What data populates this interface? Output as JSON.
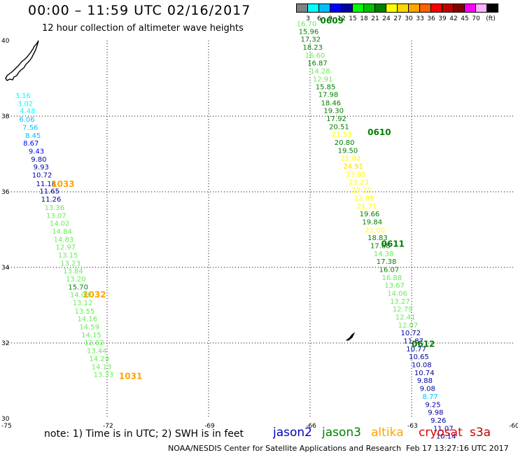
{
  "header": {
    "title": "00:00 – 11:59 UTC 02/16/2017",
    "subtitle": "12 hour collection of altimeter wave heights"
  },
  "legend": {
    "colors": [
      "#808080",
      "#00ffff",
      "#00bfff",
      "#0000ff",
      "#0000a0",
      "#00ff00",
      "#00c000",
      "#008000",
      "#ffff00",
      "#ffd700",
      "#ffa500",
      "#ff6000",
      "#ff0000",
      "#c00000",
      "#800000",
      "#ff00ff",
      "#ffb0ff",
      "#000000"
    ],
    "labels": [
      "3",
      "6",
      "9",
      "12",
      "15",
      "18",
      "21",
      "24",
      "27",
      "30",
      "33",
      "36",
      "39",
      "42",
      "45",
      "70",
      "(ft)"
    ]
  },
  "axes": {
    "x_ticks": [
      "-75",
      "-72",
      "-69",
      "-66",
      "-63",
      "-60"
    ],
    "y_ticks": [
      "30",
      "32",
      "34",
      "36",
      "38",
      "40"
    ]
  },
  "tracks": [
    {
      "pass": "1033",
      "pass_color": "#ffa500",
      "readings": [
        {
          "v": "3.16",
          "lon": -74.72,
          "lat": 38.48,
          "c": "#00ffff"
        },
        {
          "v": "3.02",
          "lon": -74.65,
          "lat": 38.27,
          "c": "#00ffff"
        },
        {
          "v": "4.48",
          "lon": -74.58,
          "lat": 38.07,
          "c": "#00ffff"
        },
        {
          "v": "6.06",
          "lon": -74.6,
          "lat": 37.85,
          "c": "#00bfff"
        },
        {
          "v": "7.56",
          "lon": -74.5,
          "lat": 37.64,
          "c": "#00bfff"
        },
        {
          "v": "8.45",
          "lon": -74.42,
          "lat": 37.43,
          "c": "#00bfff"
        },
        {
          "v": "8.67",
          "lon": -74.48,
          "lat": 37.22,
          "c": "#0000ff"
        },
        {
          "v": "9.43",
          "lon": -74.32,
          "lat": 37.01,
          "c": "#0000ff"
        },
        {
          "v": "9.80",
          "lon": -74.25,
          "lat": 36.8,
          "c": "#0000a0"
        },
        {
          "v": "9.93",
          "lon": -74.18,
          "lat": 36.59,
          "c": "#0000a0"
        },
        {
          "v": "10.72",
          "lon": -74.22,
          "lat": 36.38,
          "c": "#0000a0"
        },
        {
          "v": "11.18",
          "lon": -74.1,
          "lat": 36.15,
          "c": "#0000a0"
        },
        {
          "v": "11.65",
          "lon": -74.0,
          "lat": 35.95,
          "c": "#0000a0"
        },
        {
          "v": "11.26",
          "lon": -73.95,
          "lat": 35.74,
          "c": "#0000a0"
        },
        {
          "v": "13.36",
          "lon": -73.85,
          "lat": 35.52,
          "c": "#66ee55"
        },
        {
          "v": "13.07",
          "lon": -73.8,
          "lat": 35.31,
          "c": "#66ee55"
        },
        {
          "v": "14.02",
          "lon": -73.7,
          "lat": 35.1,
          "c": "#66ee55"
        },
        {
          "v": "14.84",
          "lon": -73.63,
          "lat": 34.89,
          "c": "#66ee55"
        },
        {
          "v": "14.83",
          "lon": -73.58,
          "lat": 34.68,
          "c": "#66ee55"
        },
        {
          "v": "12.97",
          "lon": -73.52,
          "lat": 34.47,
          "c": "#66ee55"
        },
        {
          "v": "13.15",
          "lon": -73.45,
          "lat": 34.26,
          "c": "#66ee55"
        },
        {
          "v": "13.23",
          "lon": -73.38,
          "lat": 34.05,
          "c": "#66ee55"
        },
        {
          "v": "13.84",
          "lon": -73.3,
          "lat": 33.84,
          "c": "#66ee55"
        },
        {
          "v": "13.20",
          "lon": -73.22,
          "lat": 33.63,
          "c": "#66ee55"
        },
        {
          "v": "15.70",
          "lon": -73.15,
          "lat": 33.42,
          "c": "#008000"
        },
        {
          "v": "14.03",
          "lon": -73.1,
          "lat": 33.21,
          "c": "#66ee55"
        },
        {
          "v": "13.12",
          "lon": -73.02,
          "lat": 33.0,
          "c": "#66ee55"
        },
        {
          "v": "13.55",
          "lon": -72.96,
          "lat": 32.78,
          "c": "#66ee55"
        },
        {
          "v": "14.16",
          "lon": -72.88,
          "lat": 32.57,
          "c": "#66ee55"
        },
        {
          "v": "14.59",
          "lon": -72.82,
          "lat": 32.36,
          "c": "#66ee55"
        },
        {
          "v": "14.15",
          "lon": -72.76,
          "lat": 32.15,
          "c": "#66ee55"
        },
        {
          "v": "12.82",
          "lon": -72.68,
          "lat": 31.94,
          "c": "#66ee55"
        },
        {
          "v": "13.44",
          "lon": -72.6,
          "lat": 31.73,
          "c": "#66ee55"
        },
        {
          "v": "14.29",
          "lon": -72.53,
          "lat": 31.52,
          "c": "#66ee55"
        },
        {
          "v": "14.13",
          "lon": -72.46,
          "lat": 31.31,
          "c": "#66ee55"
        },
        {
          "v": "13.33",
          "lon": -72.4,
          "lat": 31.1,
          "c": "#66ee55"
        }
      ]
    },
    {
      "pass": "0609",
      "pass_color": "#008000",
      "readings": [
        {
          "v": "16.70",
          "lon": -66.4,
          "lat": 40.38,
          "c": "#66ee55"
        },
        {
          "v": "15.96",
          "lon": -66.34,
          "lat": 40.18,
          "c": "#008000"
        },
        {
          "v": "17.32",
          "lon": -66.28,
          "lat": 39.97,
          "c": "#008000"
        },
        {
          "v": "18.23",
          "lon": -66.22,
          "lat": 39.76,
          "c": "#008000"
        },
        {
          "v": "16.60",
          "lon": -66.15,
          "lat": 39.55,
          "c": "#66ee55"
        },
        {
          "v": "16.87",
          "lon": -66.08,
          "lat": 39.34,
          "c": "#008000"
        },
        {
          "v": "14.28",
          "lon": -66.0,
          "lat": 39.13,
          "c": "#66ee55"
        },
        {
          "v": "12.91",
          "lon": -65.92,
          "lat": 38.92,
          "c": "#66ee55"
        },
        {
          "v": "15.85",
          "lon": -65.84,
          "lat": 38.71,
          "c": "#008000"
        },
        {
          "v": "17.98",
          "lon": -65.76,
          "lat": 38.51,
          "c": "#008000"
        },
        {
          "v": "18.46",
          "lon": -65.68,
          "lat": 38.29,
          "c": "#008000"
        },
        {
          "v": "19.30",
          "lon": -65.6,
          "lat": 38.08,
          "c": "#008000"
        },
        {
          "v": "17.92",
          "lon": -65.52,
          "lat": 37.87,
          "c": "#008000"
        },
        {
          "v": "20.51",
          "lon": -65.44,
          "lat": 37.66,
          "c": "#008000"
        }
      ]
    },
    {
      "pass": "0610",
      "pass_color": "#008000",
      "readings": [
        {
          "v": "21.53",
          "lon": -65.36,
          "lat": 37.45,
          "c": "#ffff00"
        },
        {
          "v": "20.80",
          "lon": -65.28,
          "lat": 37.24,
          "c": "#008000"
        },
        {
          "v": "19.50",
          "lon": -65.18,
          "lat": 37.03,
          "c": "#008000"
        },
        {
          "v": "21.83",
          "lon": -65.1,
          "lat": 36.82,
          "c": "#ffff00"
        },
        {
          "v": "24.91",
          "lon": -65.02,
          "lat": 36.61,
          "c": "#ffd700"
        },
        {
          "v": "23.95",
          "lon": -64.94,
          "lat": 36.4,
          "c": "#ffff00"
        },
        {
          "v": "23.23",
          "lon": -64.86,
          "lat": 36.19,
          "c": "#ffff00"
        },
        {
          "v": "23.27",
          "lon": -64.78,
          "lat": 35.98,
          "c": "#ffff00"
        },
        {
          "v": "22.08",
          "lon": -64.7,
          "lat": 35.77,
          "c": "#ffff00"
        },
        {
          "v": "21.71",
          "lon": -64.62,
          "lat": 35.56,
          "c": "#ffff00"
        },
        {
          "v": "19.66",
          "lon": -64.54,
          "lat": 35.35,
          "c": "#008000"
        },
        {
          "v": "19.84",
          "lon": -64.46,
          "lat": 35.14,
          "c": "#008000"
        },
        {
          "v": "21.00",
          "lon": -64.38,
          "lat": 34.93,
          "c": "#ffff00"
        },
        {
          "v": "18.83",
          "lon": -64.3,
          "lat": 34.72,
          "c": "#008000"
        }
      ]
    },
    {
      "pass": "0611",
      "pass_color": "#008000",
      "readings": [
        {
          "v": "17.68",
          "lon": -64.22,
          "lat": 34.51,
          "c": "#008000"
        },
        {
          "v": "14.38",
          "lon": -64.12,
          "lat": 34.3,
          "c": "#66ee55"
        },
        {
          "v": "17.38",
          "lon": -64.04,
          "lat": 34.09,
          "c": "#008000"
        },
        {
          "v": "16.07",
          "lon": -63.96,
          "lat": 33.88,
          "c": "#008000"
        },
        {
          "v": "16.88",
          "lon": -63.88,
          "lat": 33.67,
          "c": "#66ee55"
        },
        {
          "v": "13.67",
          "lon": -63.8,
          "lat": 33.46,
          "c": "#66ee55"
        },
        {
          "v": "14.06",
          "lon": -63.72,
          "lat": 33.25,
          "c": "#66ee55"
        },
        {
          "v": "13.27",
          "lon": -63.64,
          "lat": 33.04,
          "c": "#66ee55"
        },
        {
          "v": "12.79",
          "lon": -63.56,
          "lat": 32.83,
          "c": "#66ee55"
        },
        {
          "v": "12.41",
          "lon": -63.48,
          "lat": 32.62,
          "c": "#66ee55"
        },
        {
          "v": "12.07",
          "lon": -63.4,
          "lat": 32.41,
          "c": "#66ee55"
        }
      ]
    },
    {
      "pass": "0612",
      "pass_color": "#008000",
      "readings": [
        {
          "v": "10.72",
          "lon": -63.32,
          "lat": 32.2,
          "c": "#0000a0"
        },
        {
          "v": "11.87",
          "lon": -63.24,
          "lat": 31.99,
          "c": "#0000a0"
        },
        {
          "v": "10.77",
          "lon": -63.16,
          "lat": 31.78,
          "c": "#0000a0"
        },
        {
          "v": "10.65",
          "lon": -63.08,
          "lat": 31.57,
          "c": "#0000a0"
        },
        {
          "v": "10.08",
          "lon": -63.0,
          "lat": 31.36,
          "c": "#0000a0"
        },
        {
          "v": "10.74",
          "lon": -62.92,
          "lat": 31.15,
          "c": "#0000a0"
        },
        {
          "v": "9.88",
          "lon": -62.84,
          "lat": 30.94,
          "c": "#0000a0"
        },
        {
          "v": "9.08",
          "lon": -62.76,
          "lat": 30.73,
          "c": "#0000a0"
        },
        {
          "v": "8.77",
          "lon": -62.68,
          "lat": 30.52,
          "c": "#00bfff"
        },
        {
          "v": "9.25",
          "lon": -62.6,
          "lat": 30.31,
          "c": "#0000a0"
        },
        {
          "v": "9.98",
          "lon": -62.52,
          "lat": 30.1,
          "c": "#0000a0"
        },
        {
          "v": "9.26",
          "lon": -62.44,
          "lat": 29.89,
          "c": "#0000a0"
        },
        {
          "v": "11.07",
          "lon": -62.36,
          "lat": 29.68,
          "c": "#0000a0"
        },
        {
          "v": "10.14",
          "lon": -62.28,
          "lat": 29.47,
          "c": "#0000a0"
        }
      ]
    }
  ],
  "pass_labels": [
    {
      "text": "0609",
      "lon": -65.7,
      "lat": 40.45,
      "c": "#008000"
    },
    {
      "text": "0610",
      "lon": -64.3,
      "lat": 37.5,
      "c": "#008000"
    },
    {
      "text": "0611",
      "lon": -63.9,
      "lat": 34.55,
      "c": "#008000"
    },
    {
      "text": "0612",
      "lon": -63.0,
      "lat": 31.9,
      "c": "#008000"
    },
    {
      "text": "1033",
      "lon": -73.65,
      "lat": 36.13,
      "c": "#ffa500"
    },
    {
      "text": "1032",
      "lon": -72.72,
      "lat": 33.2,
      "c": "#ffa500"
    },
    {
      "text": "1031",
      "lon": -71.65,
      "lat": 31.05,
      "c": "#ffa500"
    }
  ],
  "footer": {
    "note": "note: 1) Time is in UTC; 2) SWH is in feet",
    "satellites": [
      {
        "name": "jason2",
        "color": "#0000c0"
      },
      {
        "name": "jason3",
        "color": "#008000"
      },
      {
        "name": "altika",
        "color": "#ffa500"
      },
      {
        "name": "cryosat",
        "color": "#e00000"
      },
      {
        "name": "s3a",
        "color": "#c00000"
      }
    ],
    "credit": "NOAA/NESDIS Center for Satellite Applications and Research",
    "timestamp": "Feb 17 13:27:16 UTC 2017"
  }
}
